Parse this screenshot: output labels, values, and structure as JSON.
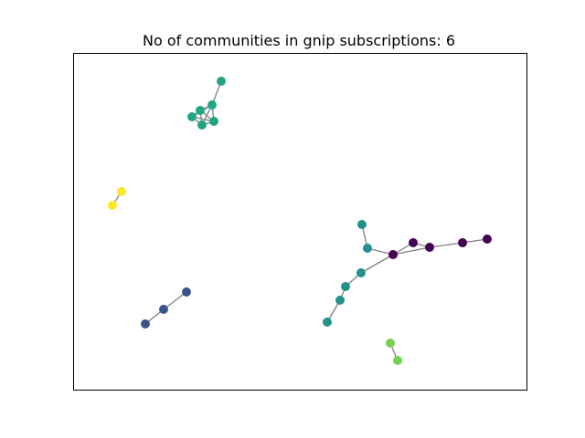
{
  "figure": {
    "title": "No of communities in gnip subscriptions: 6"
  },
  "graph": {
    "edge_color": "#808080",
    "communities": [
      {
        "id": 0,
        "color": "#440154"
      },
      {
        "id": 1,
        "color": "#3b528b"
      },
      {
        "id": 2,
        "color": "#21918c"
      },
      {
        "id": 3,
        "color": "#21a685"
      },
      {
        "id": 4,
        "color": "#7ad151"
      },
      {
        "id": 5,
        "color": "#fde725"
      }
    ],
    "nodes": [
      {
        "id": "a1",
        "community": 3
      },
      {
        "id": "a2",
        "community": 3
      },
      {
        "id": "a3",
        "community": 3
      },
      {
        "id": "a4",
        "community": 3
      },
      {
        "id": "a5",
        "community": 3
      },
      {
        "id": "a6",
        "community": 3
      },
      {
        "id": "b1",
        "community": 5
      },
      {
        "id": "b2",
        "community": 5
      },
      {
        "id": "c1",
        "community": 1
      },
      {
        "id": "c2",
        "community": 1
      },
      {
        "id": "c3",
        "community": 1
      },
      {
        "id": "d1",
        "community": 2
      },
      {
        "id": "d2",
        "community": 2
      },
      {
        "id": "d3",
        "community": 2
      },
      {
        "id": "d4",
        "community": 2
      },
      {
        "id": "d5",
        "community": 2
      },
      {
        "id": "d6",
        "community": 2
      },
      {
        "id": "e1",
        "community": 0
      },
      {
        "id": "e2",
        "community": 0
      },
      {
        "id": "e3",
        "community": 0
      },
      {
        "id": "e4",
        "community": 0
      },
      {
        "id": "e5",
        "community": 0
      },
      {
        "id": "f1",
        "community": 4
      },
      {
        "id": "f2",
        "community": 4
      }
    ],
    "edges": [
      [
        "a1",
        "a2"
      ],
      [
        "a2",
        "a3"
      ],
      [
        "a2",
        "a4"
      ],
      [
        "a2",
        "a5"
      ],
      [
        "a2",
        "a6"
      ],
      [
        "a3",
        "a4"
      ],
      [
        "a3",
        "a5"
      ],
      [
        "a3",
        "a6"
      ],
      [
        "a4",
        "a5"
      ],
      [
        "a4",
        "a6"
      ],
      [
        "a5",
        "a6"
      ],
      [
        "b1",
        "b2"
      ],
      [
        "c1",
        "c2"
      ],
      [
        "c2",
        "c3"
      ],
      [
        "d1",
        "d2"
      ],
      [
        "d2",
        "e1"
      ],
      [
        "e1",
        "d3"
      ],
      [
        "d3",
        "d4"
      ],
      [
        "d4",
        "d5"
      ],
      [
        "d5",
        "d6"
      ],
      [
        "e1",
        "e2"
      ],
      [
        "e2",
        "e3"
      ],
      [
        "e1",
        "e3"
      ],
      [
        "e3",
        "e4"
      ],
      [
        "e4",
        "e5"
      ],
      [
        "f1",
        "f2"
      ]
    ]
  }
}
